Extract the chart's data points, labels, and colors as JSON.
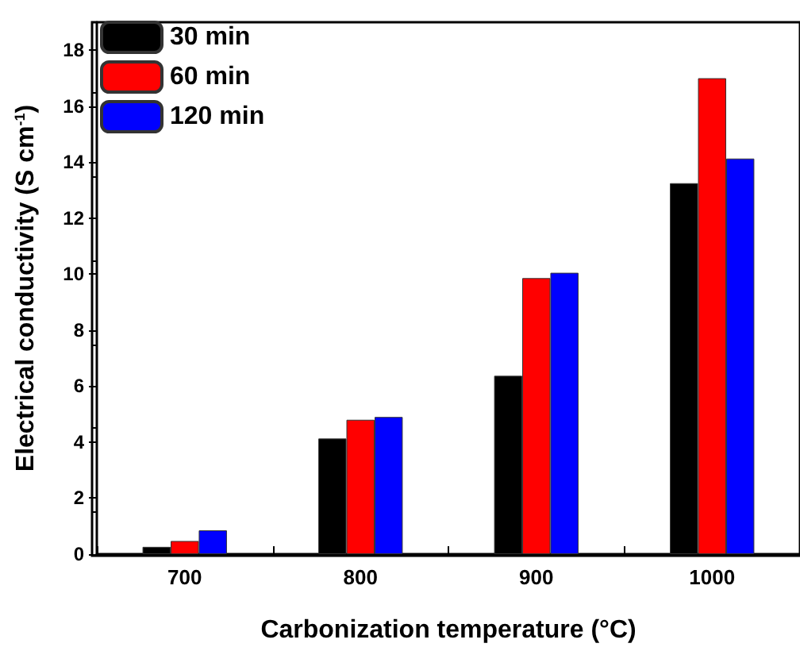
{
  "chart_data": {
    "type": "bar",
    "xlabel": "Carbonization temperature (°C)",
    "ylabel": "Electrical conductivity (S cm$^{-1}$)",
    "categories": [
      "700",
      "800",
      "900",
      "1000"
    ],
    "series": [
      {
        "name": "30 min",
        "color": "#000000",
        "values": [
          0.26,
          4.13,
          6.37,
          13.25
        ]
      },
      {
        "name": "60 min",
        "color": "#ff0000",
        "values": [
          0.47,
          4.8,
          9.86,
          17.0
        ]
      },
      {
        "name": "120 min",
        "color": "#0000ff",
        "values": [
          0.85,
          4.9,
          10.05,
          14.13
        ]
      }
    ],
    "ylim": [
      0,
      19
    ],
    "yticks": [
      0,
      2,
      4,
      6,
      8,
      10,
      12,
      14,
      16,
      18
    ],
    "grid": false,
    "legend": "top left"
  }
}
